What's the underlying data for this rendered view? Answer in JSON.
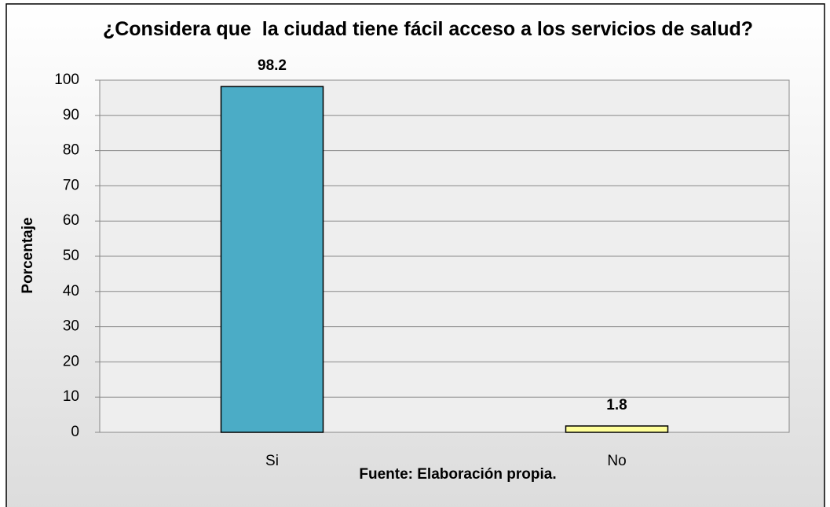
{
  "chart_data": {
    "type": "bar",
    "title": "¿Considera que  la ciudad tiene fácil acceso a los servicios de salud?",
    "y_label": "Porcentaje",
    "source": "Fuente: Elaboración propia.",
    "categories": [
      "Si",
      "No"
    ],
    "values": [
      98.2,
      1.8
    ],
    "colors": [
      "#4bacc6",
      "#ffff99"
    ],
    "ylim": [
      0,
      100
    ],
    "yticks": [
      0,
      10,
      20,
      30,
      40,
      50,
      60,
      70,
      80,
      90,
      100
    ],
    "grid": true
  }
}
